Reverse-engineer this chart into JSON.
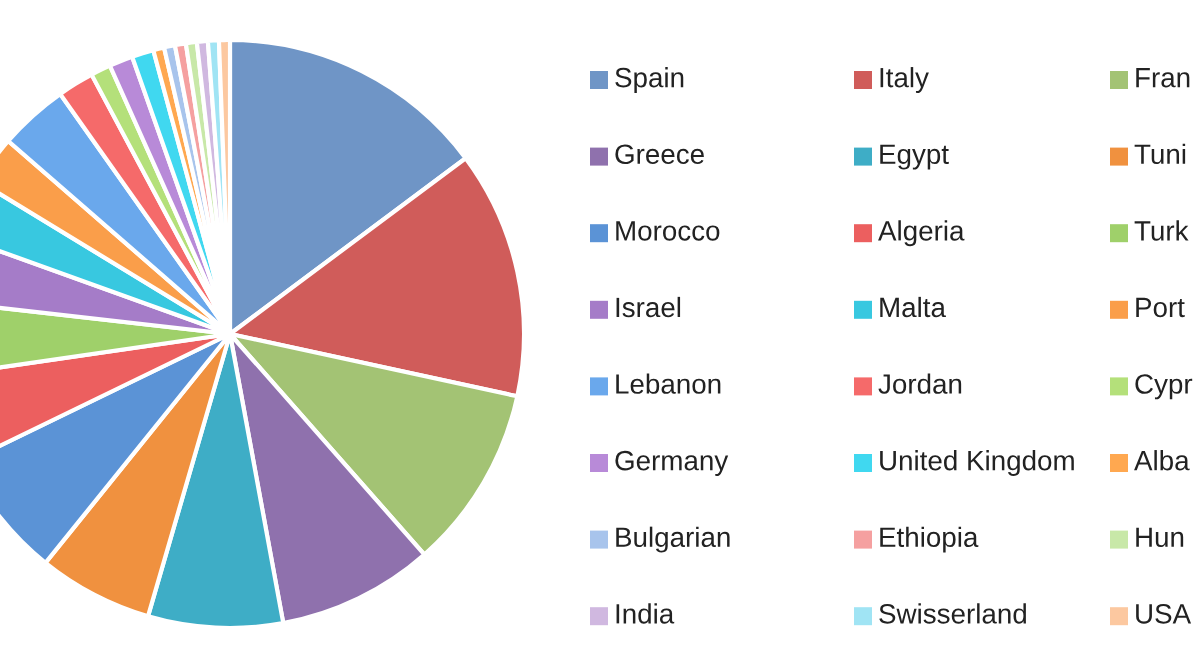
{
  "chart_data": {
    "type": "pie",
    "categories": [
      "Spain",
      "Italy",
      "Fran",
      "Greece",
      "Egypt",
      "Tuni",
      "Morocco",
      "Algeria",
      "Turk",
      "Israel",
      "Malta",
      "Port",
      "Lebanon",
      "Jordan",
      "Cypr",
      "Germany",
      "United Kingdom",
      "Alba",
      "Bulgarian",
      "Ethiopia",
      "Hun",
      "India",
      "Swisserland",
      "USA"
    ],
    "values": [
      14.8,
      13.6,
      10.1,
      8.6,
      7.4,
      6.3,
      7.0,
      4.9,
      4.1,
      3.7,
      3.2,
      2.7,
      3.8,
      2.0,
      1.1,
      1.3,
      1.2,
      0.6,
      0.6,
      0.6,
      0.6,
      0.6,
      0.6,
      0.6
    ],
    "colors": [
      "#6f95c6",
      "#d05c5a",
      "#a3c374",
      "#8f71ad",
      "#3eadc6",
      "#f0913f",
      "#5b93d6",
      "#ec5f5f",
      "#9fd06a",
      "#a57cc8",
      "#38c8e0",
      "#fa9e4a",
      "#6aa8ec",
      "#f56a6a",
      "#b4e07a",
      "#b88ad8",
      "#40d8f0",
      "#ffa850",
      "#a8c4ec",
      "#f5a0a0",
      "#c8e8a8",
      "#d0b8e0",
      "#a0e4f4",
      "#fcc8a0"
    ],
    "legend": "right"
  }
}
